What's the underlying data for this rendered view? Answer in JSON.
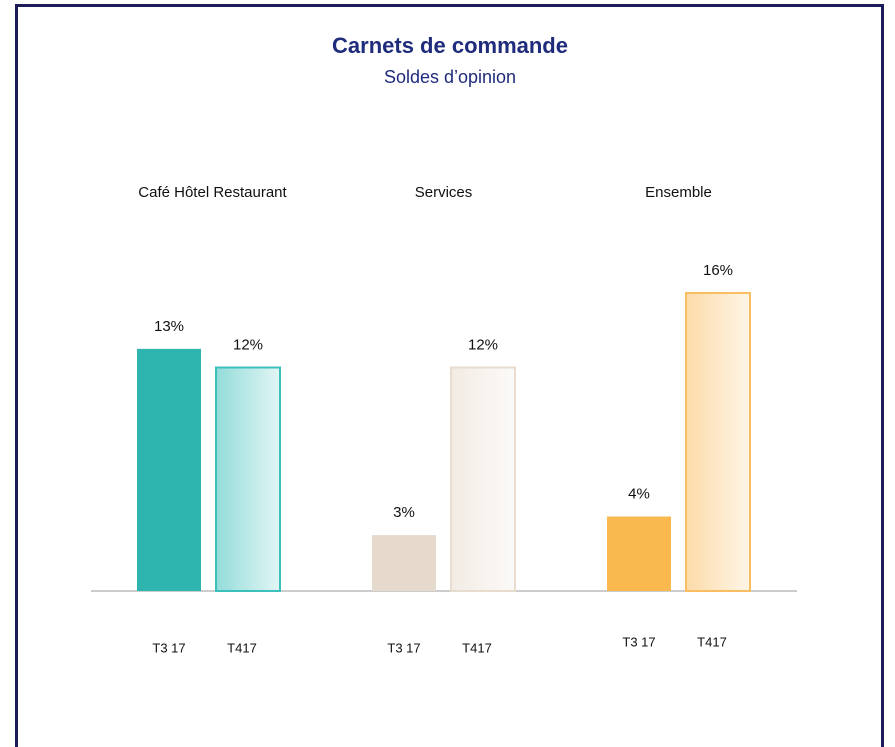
{
  "chart_data": {
    "type": "bar",
    "title": "Carnets de commande",
    "subtitle": "Soldes d’opinion",
    "groups": [
      {
        "name": "Café Hôtel Restaurant",
        "categories": [
          "T3 17",
          "T417"
        ],
        "values": [
          13,
          12
        ],
        "value_labels": [
          "13%",
          "12%"
        ],
        "colors": [
          "#2fb5b0",
          "#3cc0bb"
        ]
      },
      {
        "name": "Services",
        "categories": [
          "T3 17",
          "T417"
        ],
        "values": [
          3,
          12
        ],
        "value_labels": [
          "3%",
          "12%"
        ],
        "colors": [
          "#e6dacd",
          "#e8dccf"
        ]
      },
      {
        "name": "Ensemble",
        "categories": [
          "T3 17",
          "T417"
        ],
        "values": [
          4,
          16
        ],
        "value_labels": [
          "4%",
          "16%"
        ],
        "colors": [
          "#f9b94f",
          "#f9be62"
        ]
      }
    ]
  }
}
